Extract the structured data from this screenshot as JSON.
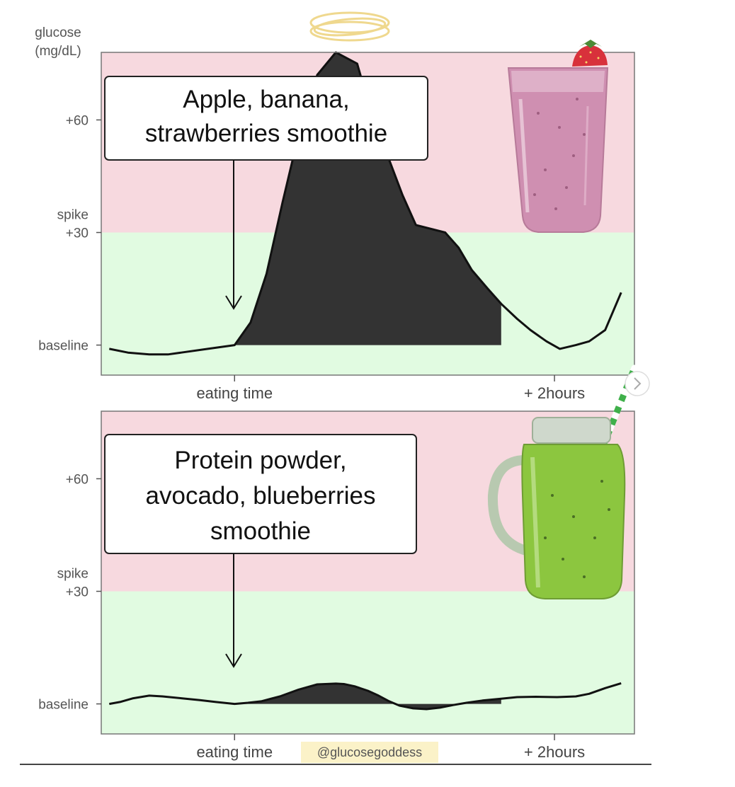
{
  "y_axis_title": [
    "glucose",
    "(mg/dL)"
  ],
  "credit": "@glucosegoddess",
  "colors": {
    "spike_zone": "#f7d9df",
    "safe_zone": "#e1fbe1",
    "area_fill": "#333333",
    "curve": "#111111",
    "halo": "#efd88e",
    "credit_bg": "#fbf2c8"
  },
  "icons": [
    "halo-icon",
    "pink-smoothie-glass-icon",
    "green-smoothie-jar-icon"
  ],
  "chart_data": [
    {
      "type": "area",
      "title": "",
      "caption_lines": [
        "Apple, banana,",
        "strawberries smoothie"
      ],
      "y_ticks": [
        {
          "value": 0,
          "lines": [
            "baseline"
          ]
        },
        {
          "value": 30,
          "lines": [
            "spike",
            "+30"
          ]
        },
        {
          "value": 60,
          "lines": [
            "+60"
          ]
        }
      ],
      "x_ticks": [
        {
          "value": 0,
          "label": "eating time"
        },
        {
          "value": 120,
          "label": "+ 2hours"
        }
      ],
      "spike_threshold": 30,
      "xlim": [
        -50,
        150
      ],
      "ylim": [
        -8,
        78
      ],
      "shaded_interval": [
        0,
        100
      ],
      "series": [
        {
          "x": [
            -47,
            -40,
            -32,
            -25,
            -20,
            -10,
            0,
            6,
            12,
            18,
            25,
            31,
            38,
            46,
            50,
            55,
            63,
            68,
            79,
            84,
            89,
            95,
            100,
            106,
            111,
            117,
            122,
            128,
            133,
            139,
            145
          ],
          "y": [
            -1,
            -2,
            -2.5,
            -2.5,
            -2,
            -1,
            0,
            6,
            19,
            38,
            59,
            72,
            78,
            75,
            65,
            55,
            40,
            32,
            30,
            26,
            20,
            15,
            11,
            7,
            4,
            1,
            -1,
            0,
            1,
            4,
            14
          ]
        }
      ]
    },
    {
      "type": "area",
      "title": "",
      "caption_lines": [
        "Protein powder,",
        "avocado, blueberries",
        "smoothie"
      ],
      "y_ticks": [
        {
          "value": 0,
          "lines": [
            "baseline"
          ]
        },
        {
          "value": 30,
          "lines": [
            "spike",
            "+30"
          ]
        },
        {
          "value": 60,
          "lines": [
            "+60"
          ]
        }
      ],
      "x_ticks": [
        {
          "value": 0,
          "label": "eating time"
        },
        {
          "value": 120,
          "label": "+ 2hours"
        }
      ],
      "spike_threshold": 30,
      "xlim": [
        -50,
        150
      ],
      "ylim": [
        -8,
        78
      ],
      "shaded_interval": [
        0,
        100
      ],
      "series": [
        {
          "x": [
            -47,
            -43,
            -38,
            -32,
            -27,
            -20,
            -13,
            -7,
            0,
            5,
            10,
            17,
            24,
            31,
            38,
            41,
            45,
            50,
            54,
            58,
            62,
            67,
            72,
            77,
            82,
            87,
            93,
            100,
            106,
            113,
            121,
            128,
            133,
            139,
            145
          ],
          "y": [
            0,
            0.5,
            1.5,
            2.2,
            2,
            1.5,
            1,
            0.5,
            0,
            0.3,
            0.7,
            2,
            3.8,
            5.2,
            5.4,
            5.3,
            4.7,
            3.5,
            2.2,
            0.7,
            -0.5,
            -1.2,
            -1.4,
            -1,
            -0.3,
            0.3,
            0.9,
            1.4,
            1.8,
            1.9,
            1.8,
            2,
            2.7,
            4.2,
            5.5
          ]
        }
      ]
    }
  ]
}
